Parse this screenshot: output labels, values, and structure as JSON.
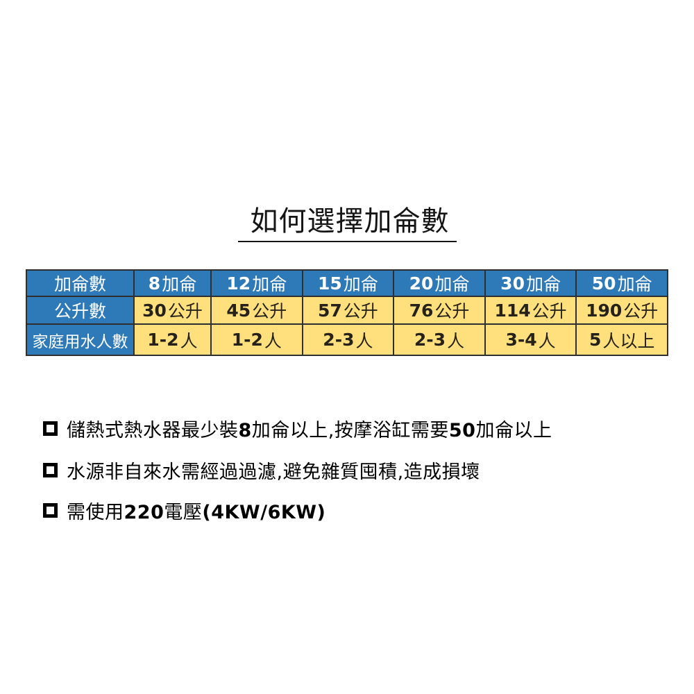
{
  "title": "如何選擇加侖數",
  "colors": {
    "header_blue": "#2e79b8",
    "cell_yellow": "#ffe07d",
    "border_dark": "#2f2f2f",
    "header_text": "#ffffff",
    "body_text": "#26221a"
  },
  "table": {
    "header": {
      "label": "加侖數",
      "cells": [
        {
          "num": "8",
          "unit": "加侖"
        },
        {
          "num": "12",
          "unit": "加侖"
        },
        {
          "num": "15",
          "unit": "加侖"
        },
        {
          "num": "20",
          "unit": "加侖"
        },
        {
          "num": "30",
          "unit": "加侖"
        },
        {
          "num": "50",
          "unit": "加侖"
        }
      ]
    },
    "rows": [
      {
        "label": "公升數",
        "cells": [
          {
            "num": "30",
            "unit": "公升"
          },
          {
            "num": "45",
            "unit": "公升"
          },
          {
            "num": "57",
            "unit": "公升"
          },
          {
            "num": "76",
            "unit": "公升"
          },
          {
            "num": "114",
            "unit": "公升"
          },
          {
            "num": "190",
            "unit": "公升"
          }
        ]
      },
      {
        "label": "家庭用水人數",
        "cells": [
          {
            "num": "1-2",
            "unit": "人"
          },
          {
            "num": "1-2",
            "unit": "人"
          },
          {
            "num": "2-3",
            "unit": "人"
          },
          {
            "num": "2-3",
            "unit": "人"
          },
          {
            "num": "3-4",
            "unit": "人"
          },
          {
            "num": "5",
            "unit": "人以上"
          }
        ]
      }
    ]
  },
  "bullets": [
    {
      "segments": [
        {
          "text": "儲熱式熱水器最少裝"
        },
        {
          "text": "8"
        },
        {
          "text": "加侖以上,按摩浴缸需要"
        },
        {
          "text": "50"
        },
        {
          "text": "加侖以上"
        }
      ]
    },
    {
      "segments": [
        {
          "text": "水源非自來水需經過過濾,避免雜質囤積,造成損壞"
        }
      ]
    },
    {
      "segments": [
        {
          "text": "需使用"
        },
        {
          "text": "220"
        },
        {
          "text": "電壓"
        },
        {
          "text": "(4KW/6KW)"
        }
      ]
    }
  ]
}
